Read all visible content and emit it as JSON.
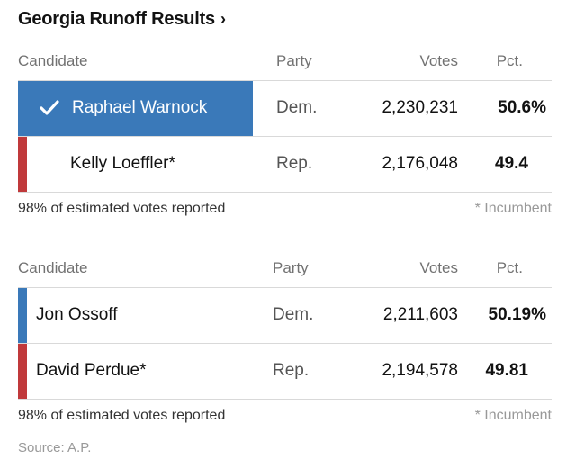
{
  "title": "Georgia Runoff Results",
  "title_chevron": "›",
  "colors": {
    "dem": "#3a79b9",
    "rep": "#c0393b",
    "winner_bg": "#3a79b9"
  },
  "races": [
    {
      "headers": {
        "candidate": "Candidate",
        "party": "Party",
        "votes": "Votes",
        "pct": "Pct."
      },
      "rows": [
        {
          "name": "Raphael Warnock",
          "party": "Dem.",
          "votes": "2,230,231",
          "pct": "50.6%",
          "winner": true
        },
        {
          "name": "Kelly Loeffler*",
          "party": "Rep.",
          "votes": "2,176,048",
          "pct": "49.4",
          "winner": false
        }
      ],
      "reported": "98% of estimated votes reported",
      "incumbent_note": "* Incumbent"
    },
    {
      "headers": {
        "candidate": "Candidate",
        "party": "Party",
        "votes": "Votes",
        "pct": "Pct."
      },
      "rows": [
        {
          "name": "Jon Ossoff",
          "party": "Dem.",
          "votes": "2,211,603",
          "pct": "50.19%",
          "winner": false
        },
        {
          "name": "David Perdue*",
          "party": "Rep.",
          "votes": "2,194,578",
          "pct": "49.81",
          "winner": false
        }
      ],
      "reported": "98% of estimated votes reported",
      "incumbent_note": "* Incumbent"
    }
  ],
  "source": "Source: A.P."
}
